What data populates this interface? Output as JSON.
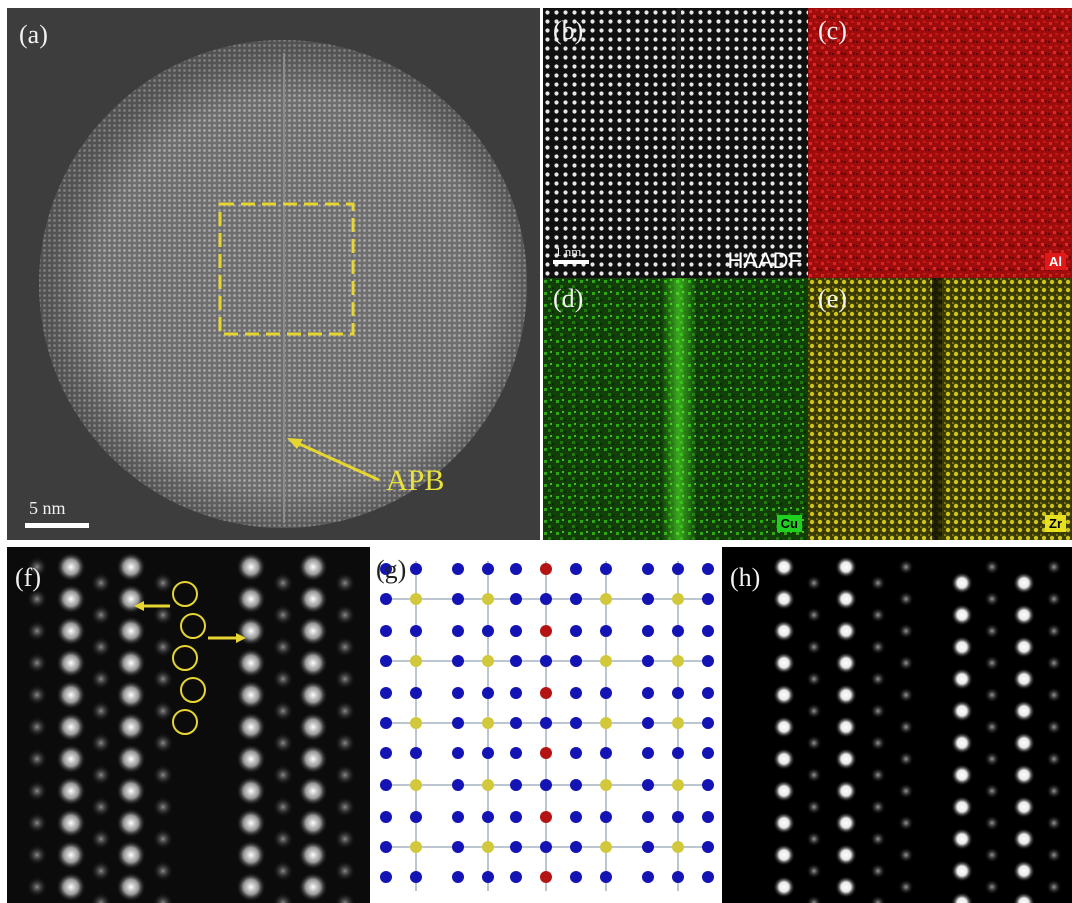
{
  "figure": {
    "panels": [
      {
        "id": "a",
        "label": "(a)",
        "annotation": "APB",
        "scale_bar": "5 nm"
      },
      {
        "id": "b",
        "label": "(b)",
        "scale_bar": "1 nm",
        "signal": "HAADF"
      },
      {
        "id": "c",
        "label": "(c)",
        "element": "Al"
      },
      {
        "id": "d",
        "label": "(d)",
        "element": "Cu"
      },
      {
        "id": "e",
        "label": "(e)",
        "element": "Zr"
      },
      {
        "id": "f",
        "label": "(f)"
      },
      {
        "id": "g",
        "label": "(g)"
      },
      {
        "id": "h",
        "label": "(h)"
      }
    ]
  },
  "colors": {
    "annotation_yellow": "#e8d630",
    "al_map": "#c81414",
    "cu_map": "#35d61a",
    "zr_map": "#d6d21e",
    "atom_blue": "#1414b4",
    "atom_yellow": "#d2c83c",
    "atom_red": "#b41414"
  }
}
